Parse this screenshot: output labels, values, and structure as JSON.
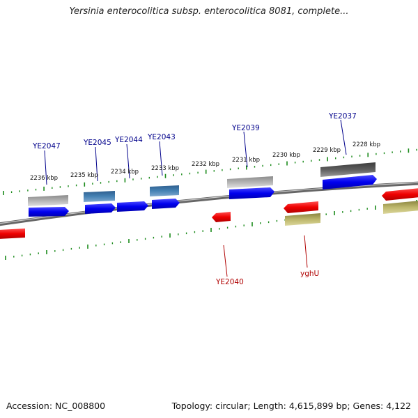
{
  "title": "Yersinia enterocolitica subsp. enterocolitica 8081, complete...",
  "footer": {
    "accession": "Accession: NC_008800",
    "summary": "Topology: circular; Length: 4,615,899 bp; Genes: 4,122"
  },
  "scale_labels": [
    "2236 kbp",
    "2235 kbp",
    "2234 kbp",
    "2233 kbp",
    "2232 kbp",
    "2231 kbp",
    "2230 kbp",
    "2229 kbp",
    "2228 kbp"
  ],
  "gene_labels_top": [
    "YE2047",
    "YE2045",
    "YE2044",
    "YE2043",
    "YE2039",
    "YE2037"
  ],
  "gene_labels_bottom": [
    "YE2040",
    "yghU"
  ],
  "colors": {
    "forward_cds": "#0000ee",
    "reverse_cds": "#ee0000",
    "gene_label_top": "#00008b",
    "gene_label_bottom": "#b00000",
    "tick": "#1a8a1a",
    "backbone": "#808080"
  }
}
